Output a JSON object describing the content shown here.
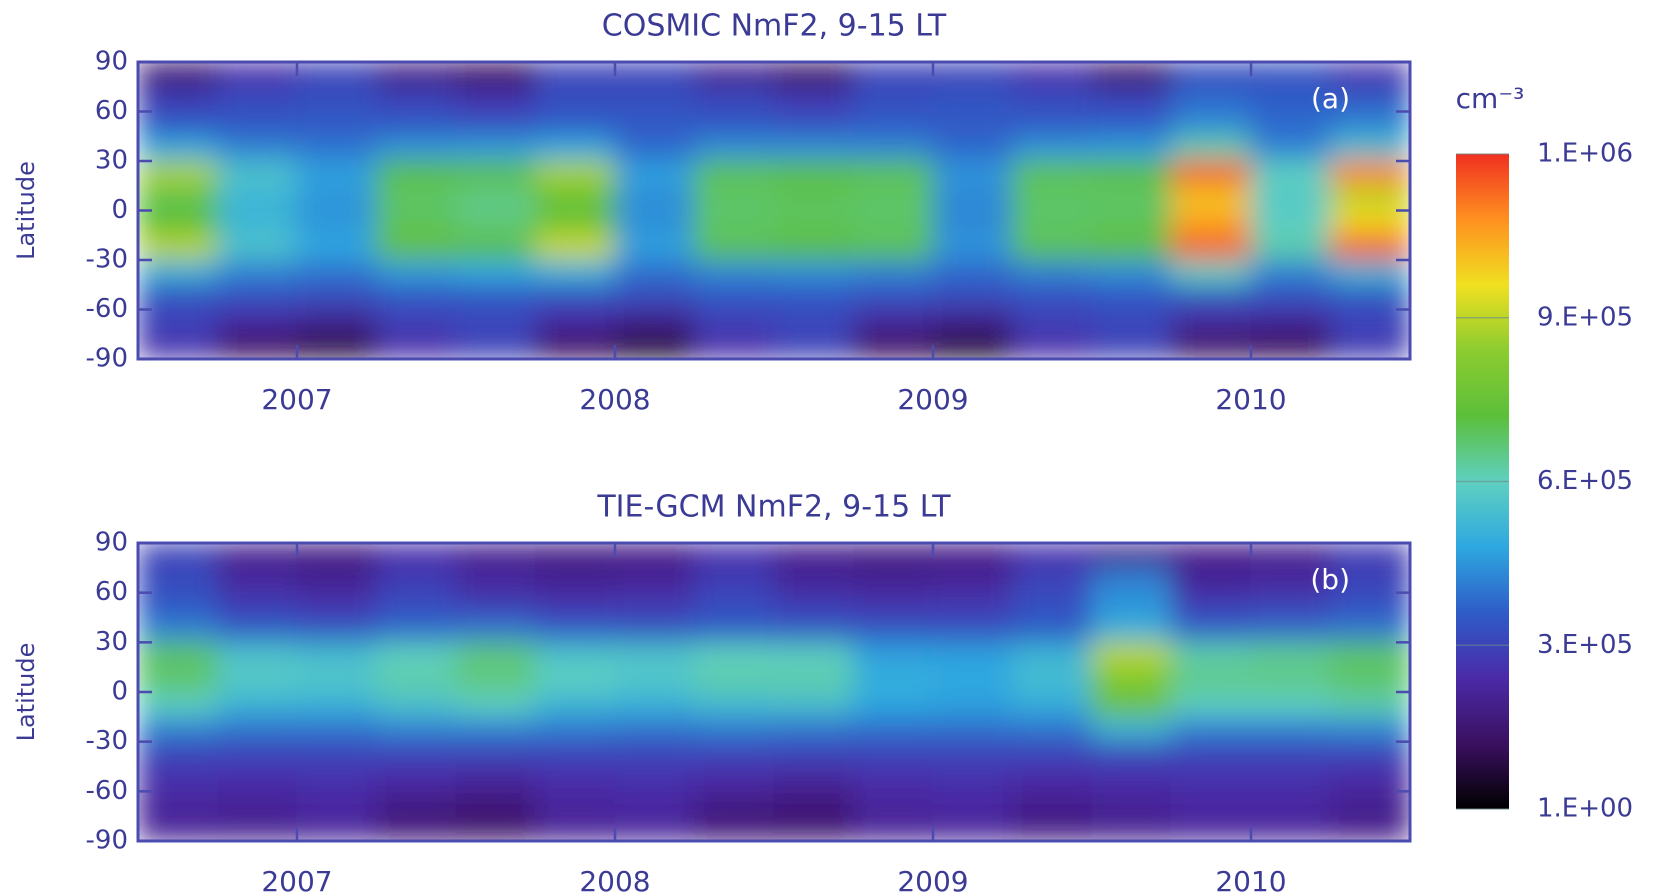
{
  "chart_data": [
    {
      "type": "heatmap",
      "title": "COSMIC NmF2, 9-15 LT",
      "ylabel": "Latitude",
      "annotation": "(a)",
      "xlim": [
        2006.5,
        2010.5
      ],
      "xticks": [
        2007,
        2008,
        2009,
        2010
      ],
      "ylim": [
        -90,
        90
      ],
      "yticks": [
        -90,
        -60,
        -30,
        0,
        30,
        60,
        90
      ],
      "x": [
        2006.625,
        2006.875,
        2007.125,
        2007.375,
        2007.625,
        2007.875,
        2008.125,
        2008.375,
        2008.625,
        2008.875,
        2009.125,
        2009.375,
        2009.625,
        2009.875,
        2010.125,
        2010.375
      ],
      "y": [
        82.5,
        67.5,
        52.5,
        37.5,
        22.5,
        7.5,
        -7.5,
        -22.5,
        -37.5,
        -52.5,
        -67.5,
        -82.5
      ],
      "z": [
        [
          150000,
          250000,
          300000,
          180000,
          120000,
          300000,
          300000,
          200000,
          130000,
          300000,
          300000,
          250000,
          140000,
          320000,
          330000,
          260000
        ],
        [
          280000,
          320000,
          330000,
          300000,
          260000,
          330000,
          330000,
          310000,
          270000,
          330000,
          340000,
          320000,
          300000,
          380000,
          360000,
          350000
        ],
        [
          340000,
          340000,
          350000,
          340000,
          330000,
          350000,
          350000,
          340000,
          330000,
          350000,
          350000,
          350000,
          360000,
          430000,
          380000,
          420000
        ],
        [
          480000,
          420000,
          400000,
          450000,
          460000,
          480000,
          380000,
          440000,
          440000,
          430000,
          380000,
          450000,
          460000,
          620000,
          420000,
          550000
        ],
        [
          880000,
          560000,
          470000,
          720000,
          720000,
          880000,
          470000,
          700000,
          720000,
          700000,
          450000,
          700000,
          720000,
          1150000,
          600000,
          1100000
        ],
        [
          700000,
          520000,
          450000,
          680000,
          650000,
          740000,
          440000,
          680000,
          690000,
          680000,
          430000,
          680000,
          680000,
          1000000,
          580000,
          900000
        ],
        [
          720000,
          520000,
          450000,
          690000,
          660000,
          760000,
          440000,
          680000,
          690000,
          680000,
          430000,
          680000,
          690000,
          1050000,
          590000,
          980000
        ],
        [
          900000,
          560000,
          480000,
          740000,
          720000,
          920000,
          470000,
          700000,
          720000,
          700000,
          450000,
          700000,
          730000,
          1150000,
          620000,
          1150000
        ],
        [
          500000,
          420000,
          400000,
          460000,
          480000,
          500000,
          390000,
          430000,
          440000,
          420000,
          380000,
          420000,
          440000,
          600000,
          420000,
          520000
        ],
        [
          330000,
          330000,
          320000,
          340000,
          340000,
          330000,
          320000,
          340000,
          340000,
          330000,
          320000,
          330000,
          340000,
          340000,
          330000,
          340000
        ],
        [
          300000,
          230000,
          200000,
          290000,
          310000,
          230000,
          190000,
          290000,
          310000,
          220000,
          190000,
          290000,
          310000,
          220000,
          210000,
          300000
        ],
        [
          260000,
          120000,
          80000,
          250000,
          300000,
          120000,
          60000,
          250000,
          300000,
          120000,
          60000,
          250000,
          300000,
          130000,
          110000,
          280000
        ]
      ]
    },
    {
      "type": "heatmap",
      "title": "TIE-GCM NmF2, 9-15 LT",
      "ylabel": "Latitude",
      "annotation": "(b)",
      "xlim": [
        2006.5,
        2010.5
      ],
      "xticks": [
        2007,
        2008,
        2009,
        2010
      ],
      "ylim": [
        -90,
        90
      ],
      "yticks": [
        -90,
        -60,
        -30,
        0,
        30,
        60,
        90
      ],
      "x": [
        2006.625,
        2006.875,
        2007.125,
        2007.375,
        2007.625,
        2007.875,
        2008.125,
        2008.375,
        2008.625,
        2008.875,
        2009.125,
        2009.375,
        2009.625,
        2009.875,
        2010.125,
        2010.375
      ],
      "y": [
        82.5,
        67.5,
        52.5,
        37.5,
        22.5,
        7.5,
        -7.5,
        -22.5,
        -37.5,
        -52.5,
        -67.5,
        -82.5
      ],
      "z": [
        [
          300000,
          200000,
          180000,
          250000,
          200000,
          180000,
          190000,
          260000,
          200000,
          180000,
          190000,
          260000,
          200000,
          190000,
          200000,
          280000
        ],
        [
          320000,
          220000,
          200000,
          280000,
          220000,
          200000,
          210000,
          280000,
          210000,
          200000,
          210000,
          300000,
          420000,
          210000,
          220000,
          300000
        ],
        [
          340000,
          280000,
          260000,
          320000,
          280000,
          260000,
          270000,
          320000,
          280000,
          260000,
          270000,
          330000,
          450000,
          280000,
          290000,
          330000
        ],
        [
          420000,
          360000,
          340000,
          380000,
          400000,
          360000,
          340000,
          360000,
          350000,
          340000,
          330000,
          360000,
          500000,
          370000,
          380000,
          400000
        ],
        [
          680000,
          560000,
          540000,
          600000,
          660000,
          560000,
          560000,
          600000,
          590000,
          470000,
          470000,
          520000,
          900000,
          620000,
          640000,
          680000
        ],
        [
          680000,
          580000,
          570000,
          620000,
          660000,
          600000,
          570000,
          620000,
          620000,
          500000,
          480000,
          540000,
          800000,
          650000,
          650000,
          680000
        ],
        [
          600000,
          520000,
          510000,
          560000,
          600000,
          520000,
          510000,
          540000,
          550000,
          480000,
          470000,
          500000,
          760000,
          600000,
          600000,
          620000
        ],
        [
          420000,
          400000,
          400000,
          420000,
          420000,
          410000,
          400000,
          410000,
          400000,
          390000,
          390000,
          400000,
          520000,
          420000,
          420000,
          430000
        ],
        [
          300000,
          300000,
          300000,
          300000,
          300000,
          300000,
          300000,
          300000,
          300000,
          300000,
          300000,
          300000,
          310000,
          300000,
          300000,
          300000
        ],
        [
          260000,
          250000,
          260000,
          240000,
          220000,
          250000,
          260000,
          240000,
          220000,
          250000,
          260000,
          240000,
          250000,
          260000,
          260000,
          240000
        ],
        [
          220000,
          210000,
          230000,
          180000,
          160000,
          220000,
          230000,
          180000,
          160000,
          220000,
          230000,
          190000,
          210000,
          230000,
          230000,
          200000
        ],
        [
          210000,
          200000,
          220000,
          160000,
          140000,
          210000,
          220000,
          160000,
          150000,
          210000,
          220000,
          180000,
          200000,
          220000,
          220000,
          190000
        ]
      ]
    }
  ],
  "colorbar": {
    "label": "cm⁻³",
    "zlim": [
      0,
      1200000
    ],
    "ticks": [
      {
        "value": 1,
        "label": "1.E+00"
      },
      {
        "value": 300000,
        "label": "3.E+05"
      },
      {
        "value": 600000,
        "label": "6.E+05"
      },
      {
        "value": 900000,
        "label": "9.E+05"
      },
      {
        "value": 1200000,
        "label": "1.E+06"
      }
    ],
    "colors": [
      "#000000",
      "#3a1060",
      "#4b2aa8",
      "#2e5cc8",
      "#2ea8e0",
      "#5fd0c0",
      "#5cbf3a",
      "#8ccc30",
      "#f0e020",
      "#ff9020",
      "#f03020"
    ]
  }
}
